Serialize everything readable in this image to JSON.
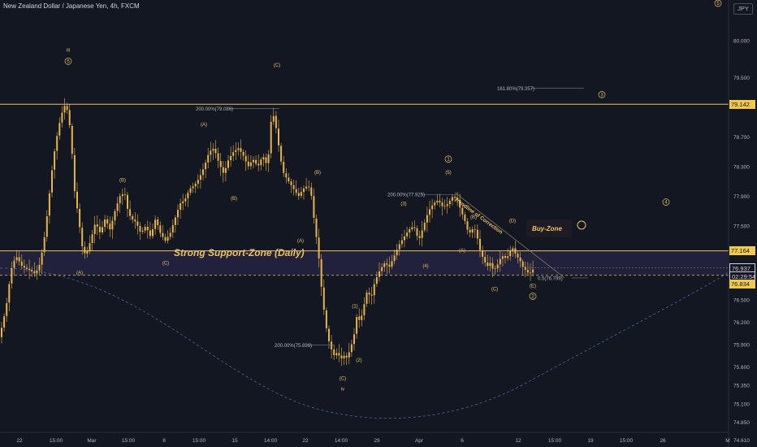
{
  "header": {
    "title": "New Zealand Dollar / Japanese Yen, 4h, FXCM",
    "currency_badge": "JPY",
    "corner_wave": "5"
  },
  "colors": {
    "background": "#131722",
    "candle": "#e9b54a",
    "gold": "#e8c26a",
    "zone_fill": "#26233f",
    "price_tag_bg": "#f2c94c",
    "dotted_curve": "#4a6aa0"
  },
  "chart_data": {
    "type": "candlestick",
    "symbol": "NZDJPY",
    "timeframe": "4h",
    "ylim": [
      74.45,
      80.65
    ],
    "y_ticks": [
      "80.000",
      "79.500",
      "79.142",
      "78.700",
      "78.300",
      "77.900",
      "77.500",
      "77.164",
      "76.937",
      "02:29:54",
      "76.834",
      "76.500",
      "76.200",
      "75.900",
      "75.600",
      "75.350",
      "75.100",
      "74.850",
      "74.610"
    ],
    "x_ticks": [
      "22",
      "15:00",
      "Mar",
      "15:00",
      "8",
      "15:00",
      "15",
      "14:00",
      "22",
      "14:00",
      "29",
      "Apr",
      "6",
      "12",
      "15:00",
      "19",
      "15:00",
      "26",
      "M"
    ],
    "price_tags": {
      "resistance": "79.142",
      "support": "77.164",
      "last": "76.937",
      "countdown": "02:29:54",
      "low_tag": "76.834"
    },
    "levels": {
      "resistance": 79.142,
      "support_top": 77.164,
      "support_bottom": 76.834,
      "last_price": 76.937
    },
    "path_points": [
      [
        0,
        76.0
      ],
      [
        8,
        76.4
      ],
      [
        14,
        76.9
      ],
      [
        20,
        77.1
      ],
      [
        28,
        76.95
      ],
      [
        38,
        76.9
      ],
      [
        44,
        76.85
      ],
      [
        50,
        77.0
      ],
      [
        56,
        77.4
      ],
      [
        62,
        78.0
      ],
      [
        66,
        78.4
      ],
      [
        72,
        78.8
      ],
      [
        76,
        79.0
      ],
      [
        80,
        79.12
      ],
      [
        84,
        79.05
      ],
      [
        88,
        78.7
      ],
      [
        92,
        78.0
      ],
      [
        96,
        77.7
      ],
      [
        102,
        77.2
      ],
      [
        106,
        77.1
      ],
      [
        112,
        77.3
      ],
      [
        118,
        77.55
      ],
      [
        124,
        77.4
      ],
      [
        130,
        77.6
      ],
      [
        136,
        77.45
      ],
      [
        142,
        77.7
      ],
      [
        148,
        77.9
      ],
      [
        154,
        77.95
      ],
      [
        158,
        77.7
      ],
      [
        162,
        77.6
      ],
      [
        168,
        77.55
      ],
      [
        174,
        77.4
      ],
      [
        180,
        77.5
      ],
      [
        186,
        77.35
      ],
      [
        192,
        77.6
      ],
      [
        198,
        77.4
      ],
      [
        204,
        77.3
      ],
      [
        210,
        77.4
      ],
      [
        216,
        77.6
      ],
      [
        222,
        77.8
      ],
      [
        228,
        77.85
      ],
      [
        234,
        78.0
      ],
      [
        240,
        78.05
      ],
      [
        246,
        78.15
      ],
      [
        252,
        78.3
      ],
      [
        258,
        78.5
      ],
      [
        264,
        78.55
      ],
      [
        270,
        78.35
      ],
      [
        276,
        78.2
      ],
      [
        282,
        78.4
      ],
      [
        288,
        78.5
      ],
      [
        294,
        78.55
      ],
      [
        300,
        78.45
      ],
      [
        306,
        78.3
      ],
      [
        312,
        78.4
      ],
      [
        318,
        78.3
      ],
      [
        324,
        78.45
      ],
      [
        330,
        78.3
      ],
      [
        334,
        78.9
      ],
      [
        338,
        79.0
      ],
      [
        342,
        78.7
      ],
      [
        346,
        78.4
      ],
      [
        350,
        78.2
      ],
      [
        356,
        78.1
      ],
      [
        362,
        78.0
      ],
      [
        368,
        77.9
      ],
      [
        374,
        78.0
      ],
      [
        380,
        78.05
      ],
      [
        384,
        77.9
      ],
      [
        388,
        77.5
      ],
      [
        392,
        77.2
      ],
      [
        396,
        76.7
      ],
      [
        400,
        76.3
      ],
      [
        404,
        76.0
      ],
      [
        408,
        75.85
      ],
      [
        412,
        75.75
      ],
      [
        416,
        75.8
      ],
      [
        420,
        75.7
      ],
      [
        424,
        75.75
      ],
      [
        428,
        75.72
      ],
      [
        432,
        75.85
      ],
      [
        436,
        76.0
      ],
      [
        440,
        76.3
      ],
      [
        444,
        76.2
      ],
      [
        448,
        76.4
      ],
      [
        452,
        76.6
      ],
      [
        458,
        76.55
      ],
      [
        462,
        76.75
      ],
      [
        468,
        76.9
      ],
      [
        474,
        77.0
      ],
      [
        480,
        76.95
      ],
      [
        486,
        77.1
      ],
      [
        492,
        77.25
      ],
      [
        498,
        77.35
      ],
      [
        504,
        77.45
      ],
      [
        510,
        77.5
      ],
      [
        516,
        77.3
      ],
      [
        522,
        77.5
      ],
      [
        528,
        77.7
      ],
      [
        534,
        77.8
      ],
      [
        540,
        77.85
      ],
      [
        546,
        77.75
      ],
      [
        552,
        77.8
      ],
      [
        558,
        77.9
      ],
      [
        564,
        77.85
      ],
      [
        568,
        77.7
      ],
      [
        572,
        77.6
      ],
      [
        576,
        77.45
      ],
      [
        580,
        77.4
      ],
      [
        584,
        77.5
      ],
      [
        588,
        77.35
      ],
      [
        592,
        77.15
      ],
      [
        596,
        77.05
      ],
      [
        600,
        76.95
      ],
      [
        604,
        77.0
      ],
      [
        608,
        76.9
      ],
      [
        612,
        76.95
      ],
      [
        616,
        77.05
      ],
      [
        620,
        77.1
      ],
      [
        624,
        77.05
      ],
      [
        628,
        77.15
      ],
      [
        632,
        77.2
      ],
      [
        636,
        77.1
      ],
      [
        640,
        77.05
      ],
      [
        644,
        76.95
      ],
      [
        648,
        76.9
      ],
      [
        652,
        76.85
      ],
      [
        658,
        76.93
      ]
    ],
    "fib_labels": [
      {
        "text": "200.00%(79.086)",
        "price": 79.086,
        "x0": 241,
        "x1": 344
      },
      {
        "text": "200.00%(77.925)",
        "price": 77.925,
        "x0": 477,
        "x1": 563
      },
      {
        "text": "200.00%(75.896)",
        "price": 75.896,
        "x0": 338,
        "x1": 412
      },
      {
        "text": "161.80%(79.357)",
        "price": 79.357,
        "x0": 612,
        "x1": 719
      },
      {
        "text": "0.5(76.799)",
        "price": 76.799,
        "x0": 662,
        "x1": 724
      }
    ],
    "wave_labels": [
      {
        "t": "iii",
        "x": 84,
        "p": 79.85
      },
      {
        "t": "5",
        "x": 84,
        "p": 79.7,
        "circle": true
      },
      {
        "t": "(A)",
        "x": 251,
        "p": 78.85
      },
      {
        "t": "(C)",
        "x": 341,
        "p": 79.65
      },
      {
        "t": "(B)",
        "x": 151,
        "p": 78.1
      },
      {
        "t": "(B)",
        "x": 288,
        "p": 77.85
      },
      {
        "t": "(B)",
        "x": 391,
        "p": 78.2
      },
      {
        "t": "(A)",
        "x": 370,
        "p": 77.28
      },
      {
        "t": "(C)",
        "x": 204,
        "p": 76.98
      },
      {
        "t": "(A)",
        "x": 98,
        "p": 76.85
      },
      {
        "t": "(1)",
        "x": 437,
        "p": 76.4
      },
      {
        "t": "(2)",
        "x": 442,
        "p": 75.67
      },
      {
        "t": "(C)",
        "x": 422,
        "p": 75.42
      },
      {
        "t": "iv",
        "x": 422,
        "p": 75.28
      },
      {
        "t": "1",
        "x": 552,
        "p": 78.38,
        "circle": true
      },
      {
        "t": "(5)",
        "x": 552,
        "p": 78.2
      },
      {
        "t": "(3)",
        "x": 497,
        "p": 77.78
      },
      {
        "t": "(4)",
        "x": 524,
        "p": 76.94
      },
      {
        "t": "(B)",
        "x": 583,
        "p": 77.6
      },
      {
        "t": "(A)",
        "x": 569,
        "p": 77.15
      },
      {
        "t": "(D)",
        "x": 631,
        "p": 77.55
      },
      {
        "t": "(C)",
        "x": 609,
        "p": 76.63
      },
      {
        "t": "(E)",
        "x": 656,
        "p": 76.67
      },
      {
        "t": "2",
        "x": 656,
        "p": 76.53,
        "circle": true
      },
      {
        "t": "3",
        "x": 741,
        "p": 79.25,
        "circle": true
      },
      {
        "t": "4",
        "x": 820,
        "p": 77.8,
        "circle": true
      }
    ],
    "annotations": {
      "zone_label": "Strong Support-Zone (Daily)",
      "buy_zone": "Buy-Zone",
      "trendline": "Trendline of Correction"
    }
  }
}
